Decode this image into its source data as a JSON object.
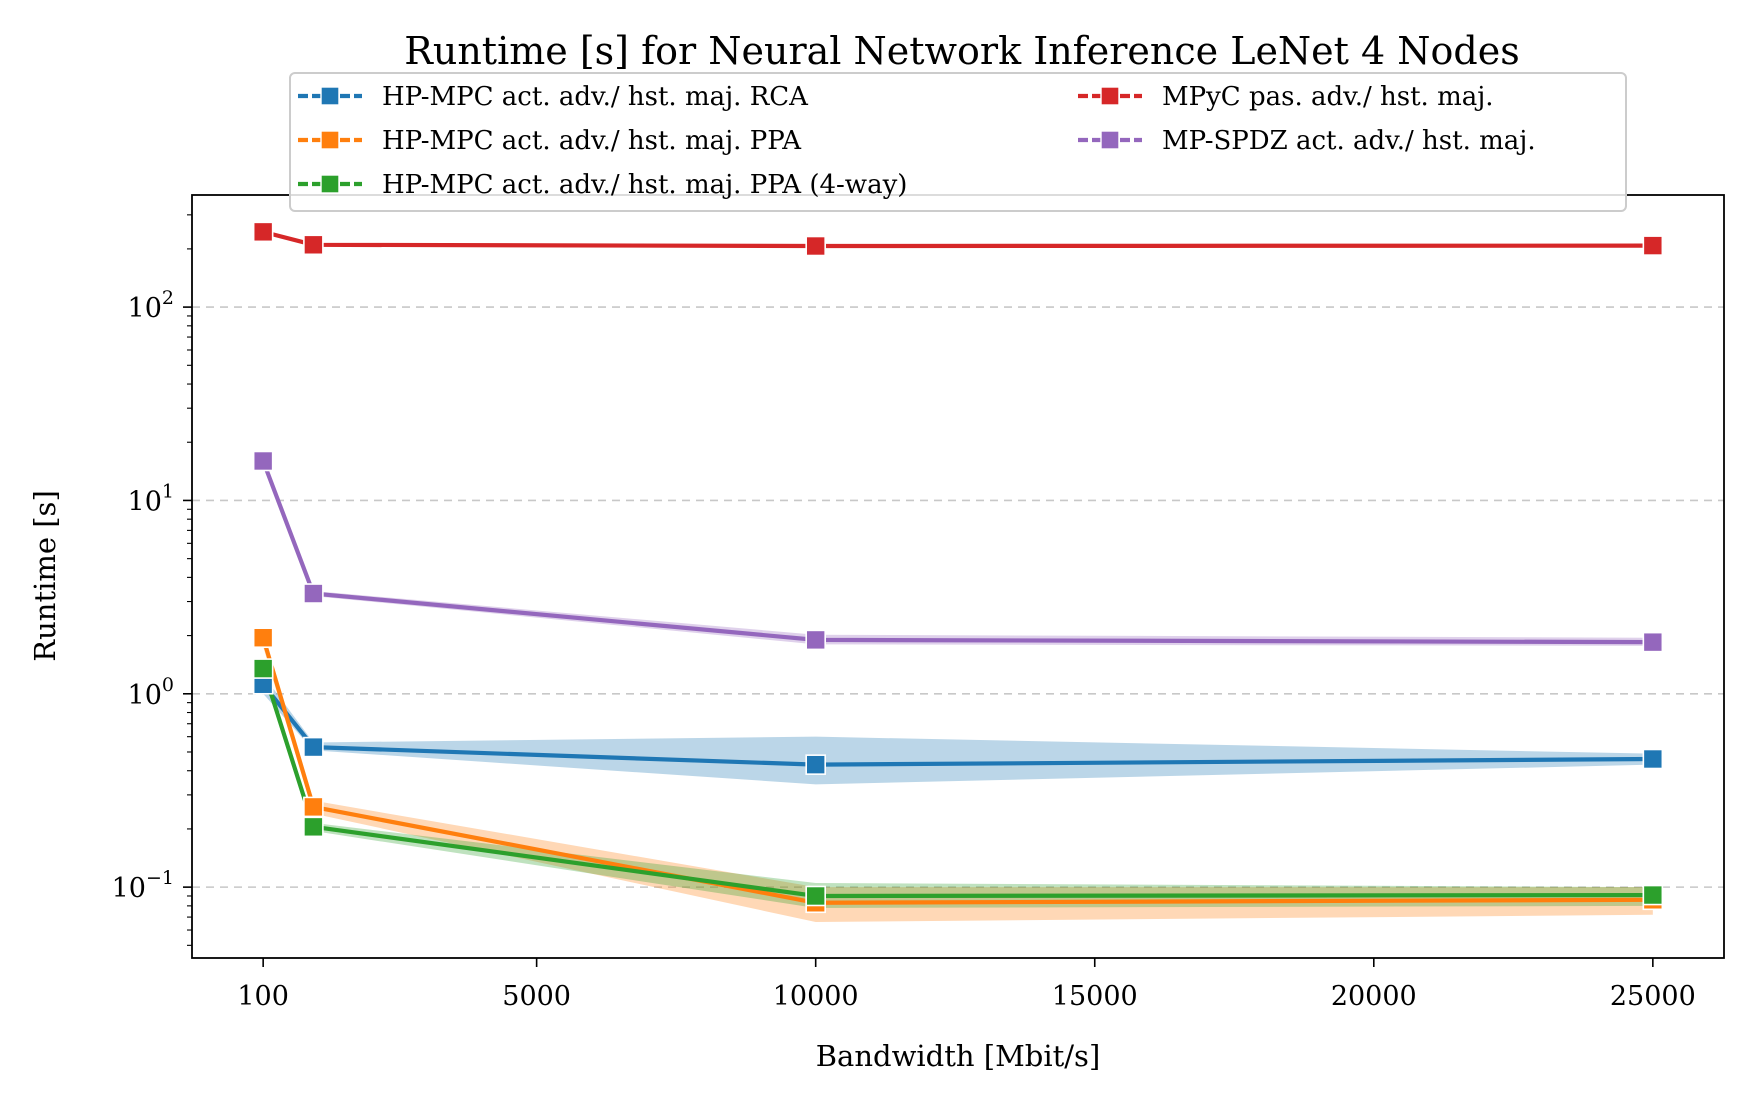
{
  "chart_data": {
    "type": "line",
    "title": "Runtime [s] for Neural Network Inference LeNet 4 Nodes",
    "xlabel": "Bandwidth [Mbit/s]",
    "ylabel": "Runtime [s]",
    "x_scale": "linear",
    "y_scale": "log",
    "xlim": [
      -1175,
      26275
    ],
    "ylim": [
      0.043,
      380
    ],
    "x_ticks": [
      100,
      5000,
      10000,
      15000,
      20000,
      25000
    ],
    "x_tick_labels": [
      "100",
      "5000",
      "10000",
      "15000",
      "20000",
      "25000"
    ],
    "y_ticks": [
      0.1,
      1,
      10,
      100
    ],
    "y_tick_labels": [
      {
        "base": "10",
        "exp": "−1"
      },
      {
        "base": "10",
        "exp": "0"
      },
      {
        "base": "10",
        "exp": "1"
      },
      {
        "base": "10",
        "exp": "2"
      }
    ],
    "grid": "horizontal dashed at major y ticks",
    "legend_placement": "top-center, 2 columns",
    "x": [
      100,
      1000,
      10000,
      25000
    ],
    "series": [
      {
        "name": "HP-MPC act. adv./ hst. maj. RCA",
        "color": "#1f77b4",
        "values": [
          1.12,
          0.53,
          0.43,
          0.46
        ],
        "band_low": [
          1.0,
          0.51,
          0.34,
          0.43
        ],
        "band_high": [
          1.25,
          0.56,
          0.6,
          0.49
        ]
      },
      {
        "name": "HP-MPC act. adv./ hst. maj. PPA",
        "color": "#ff7f0e",
        "values": [
          1.95,
          0.26,
          0.083,
          0.086
        ],
        "band_low": [
          1.75,
          0.24,
          0.066,
          0.072
        ],
        "band_high": [
          2.1,
          0.28,
          0.1,
          0.1
        ]
      },
      {
        "name": "HP-MPC act. adv./ hst. maj. PPA (4-way)",
        "color": "#2ca02c",
        "values": [
          1.35,
          0.205,
          0.09,
          0.091
        ],
        "band_low": [
          1.25,
          0.195,
          0.078,
          0.08
        ],
        "band_high": [
          1.45,
          0.215,
          0.105,
          0.1
        ]
      },
      {
        "name": "MPyC pas. adv./ hst. maj.",
        "color": "#d62728",
        "values": [
          245,
          210,
          207,
          208
        ],
        "band_low": [
          242,
          208,
          205,
          206
        ],
        "band_high": [
          248,
          212,
          209,
          210
        ]
      },
      {
        "name": "MP-SPDZ act. adv./ hst. maj.",
        "color": "#9467bd",
        "values": [
          16,
          3.3,
          1.9,
          1.85
        ],
        "band_low": [
          15.5,
          3.2,
          1.8,
          1.77
        ],
        "band_high": [
          16.5,
          3.4,
          2.02,
          1.95
        ]
      }
    ]
  }
}
